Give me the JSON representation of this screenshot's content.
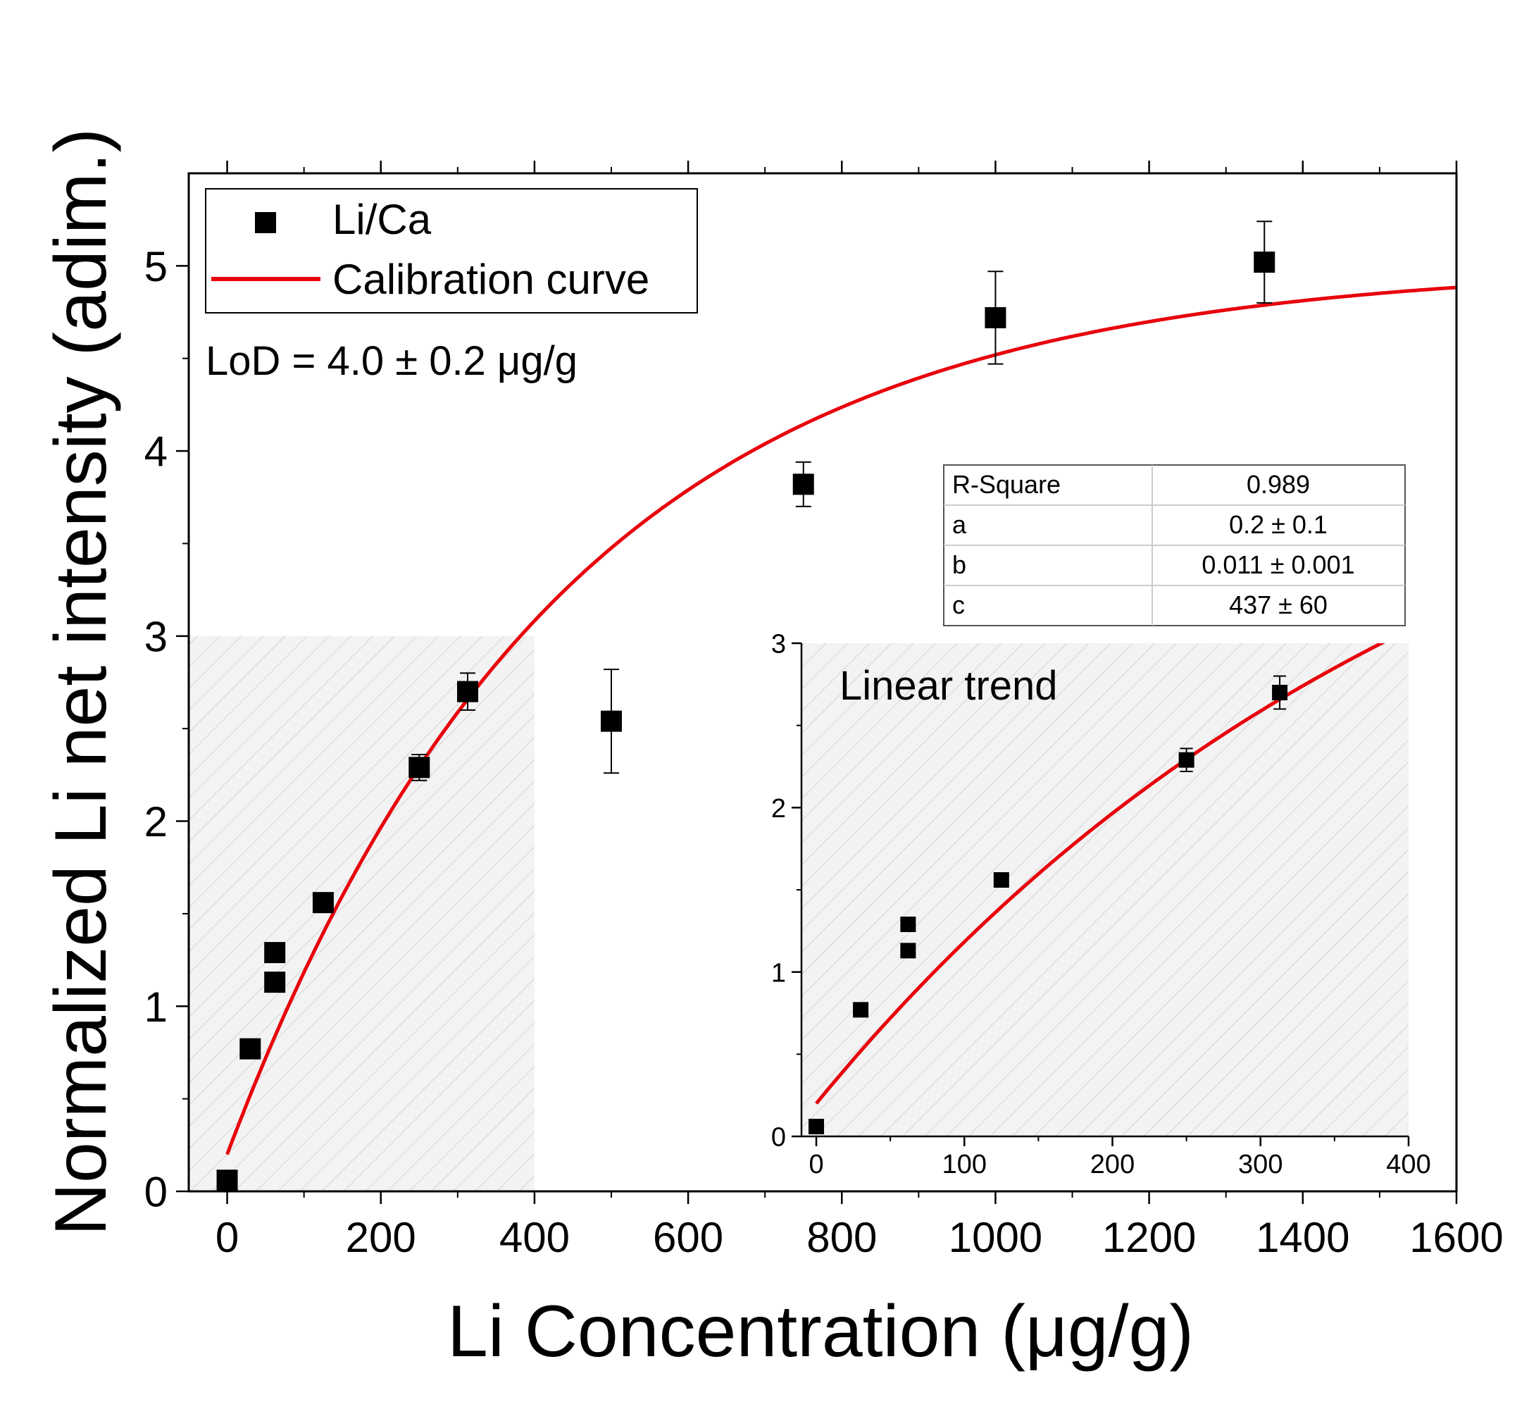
{
  "chart_data": [
    {
      "type": "scatter",
      "role": "main",
      "xlabel": "Li Concentration (μg/g)",
      "ylabel": "Normalized Li net intensity (adim.)",
      "xlim": [
        -50,
        1600
      ],
      "ylim": [
        0,
        5.5
      ],
      "xticks": [
        0,
        200,
        400,
        600,
        800,
        1000,
        1200,
        1400,
        1600
      ],
      "xtick_labels": [
        "0",
        "200",
        "400",
        "600",
        "800",
        "1000",
        "1200",
        "1400",
        "1600"
      ],
      "yticks": [
        0,
        1,
        2,
        3,
        4,
        5
      ],
      "ytick_labels": [
        "0",
        "1",
        "2",
        "3",
        "4",
        "5"
      ],
      "shaded_region": {
        "x": [
          -50,
          400
        ],
        "y": [
          0,
          3
        ]
      },
      "series": [
        {
          "name": "Li/Ca",
          "x": [
            0,
            30,
            62,
            62,
            125,
            250,
            313,
            500,
            750,
            1000,
            1350
          ],
          "y": [
            0.06,
            0.77,
            1.13,
            1.29,
            1.56,
            2.29,
            2.7,
            2.54,
            3.82,
            4.72,
            5.02
          ],
          "yerr": [
            0.01,
            0.01,
            0.01,
            0.01,
            0.02,
            0.07,
            0.1,
            0.28,
            0.12,
            0.25,
            0.22
          ]
        }
      ],
      "curve": {
        "name": "Calibration curve",
        "model": "y = a + c*b*(1 - exp(-x/c))",
        "params": {
          "a": 0.2,
          "b": 0.011,
          "c": 437
        },
        "x_range": [
          0,
          1600
        ],
        "color": "#e8000b"
      },
      "legend": {
        "position": "top-left",
        "entries": [
          {
            "label": "Li/Ca",
            "marker": "square"
          },
          {
            "label": "Calibration curve",
            "marker": "line"
          }
        ]
      },
      "annotation": "LoD = 4.0 ± 0.2 μg/g",
      "fit_table": {
        "rows": [
          {
            "label": "R-Square",
            "value": "0.989"
          },
          {
            "label": "a",
            "value": "0.2 ± 0.1"
          },
          {
            "label": "b",
            "value": "0.011 ± 0.001"
          },
          {
            "label": "c",
            "value": "437 ± 60"
          }
        ]
      }
    },
    {
      "type": "scatter",
      "role": "inset",
      "title": "Linear trend",
      "xlim": [
        -10,
        400
      ],
      "ylim": [
        0,
        3
      ],
      "xticks": [
        0,
        100,
        200,
        300,
        400
      ],
      "xtick_labels": [
        "0",
        "100",
        "200",
        "300",
        "400"
      ],
      "yticks": [
        0,
        1,
        2,
        3
      ],
      "ytick_labels": [
        "0",
        "1",
        "2",
        "3"
      ],
      "series": [
        {
          "name": "Li/Ca",
          "x": [
            0,
            30,
            62,
            62,
            125,
            250,
            313
          ],
          "y": [
            0.06,
            0.77,
            1.13,
            1.29,
            1.56,
            2.29,
            2.7
          ],
          "yerr": [
            0.01,
            0.01,
            0.01,
            0.01,
            0.02,
            0.07,
            0.1
          ]
        }
      ],
      "curve": {
        "model": "y = a + c*b*(1 - exp(-x/c))",
        "params": {
          "a": 0.2,
          "b": 0.011,
          "c": 437
        },
        "x_range": [
          0,
          400
        ],
        "color": "#e8000b"
      }
    }
  ]
}
